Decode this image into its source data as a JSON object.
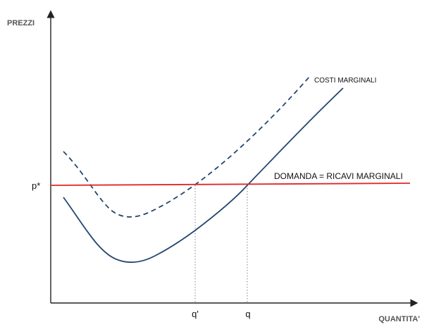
{
  "chart_data": {
    "type": "line",
    "y_axis_title": "PREZZI",
    "x_axis_title": "QUANTITA'",
    "price_label": "p*",
    "quantity_labels": {
      "q_prime": "q'",
      "q": "q"
    },
    "curves": {
      "demand_label": "DOMANDA = RICAVI  MARGINALI",
      "shifted_marginal_cost_label": "COSTI MARGINALI"
    },
    "colors": {
      "axis": "#222222",
      "demand": "#e0282a",
      "marginal_cost": "#24466e",
      "guides": "#8a9aa8"
    }
  }
}
